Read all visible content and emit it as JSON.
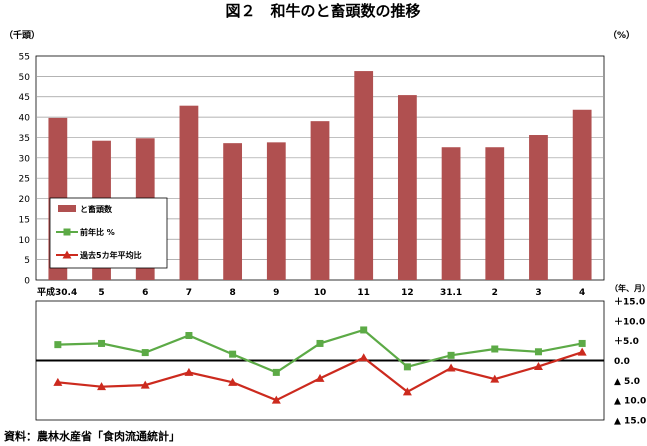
{
  "chart_data": {
    "title": "図２　和牛のと畜頭数の推移",
    "source": "資料：農林水産省「食肉流通統計」",
    "categories": [
      "平成30.4",
      "5",
      "6",
      "7",
      "8",
      "9",
      "10",
      "11",
      "12",
      "31.1",
      "2",
      "3",
      "4"
    ],
    "x_unit": "（年、月）",
    "panels": [
      {
        "type": "bar",
        "ylabel": "（千頭）",
        "ylim": [
          0,
          55
        ],
        "yticks": [
          "0",
          "5",
          "10",
          "15",
          "20",
          "25",
          "30",
          "35",
          "40",
          "45",
          "50",
          "55"
        ],
        "grid": true,
        "series": [
          {
            "name": "と畜頭数",
            "color": "#b05050",
            "values": [
              39.8,
              34.2,
              34.8,
              42.8,
              33.6,
              33.8,
              39.0,
              51.3,
              45.4,
              32.6,
              32.6,
              35.6,
              41.8
            ]
          }
        ]
      },
      {
        "type": "line",
        "ylabel": "（%）",
        "ylim": [
          -15,
          15
        ],
        "yticks": [
          "＋15.0",
          "＋10.0",
          "＋5.0",
          "0.0",
          "▲ 5.0",
          "▲ 10.0",
          "▲ 15.0"
        ],
        "grid": false,
        "series": [
          {
            "name": "前年比 %",
            "color": "#5caa46",
            "marker": "square",
            "values": [
              4.0,
              4.3,
              2.0,
              6.3,
              1.6,
              -3.0,
              4.3,
              7.7,
              -1.6,
              1.3,
              2.9,
              2.2,
              4.3
            ]
          },
          {
            "name": "過去5カ年平均比",
            "color": "#cc2a1e",
            "marker": "triangle",
            "values": [
              -5.5,
              -6.6,
              -6.2,
              -3.0,
              -5.5,
              -10.0,
              -4.5,
              0.7,
              -7.9,
              -1.9,
              -4.7,
              -1.5,
              2.1
            ]
          }
        ]
      }
    ],
    "legend": {
      "placement": "left-middle"
    }
  }
}
